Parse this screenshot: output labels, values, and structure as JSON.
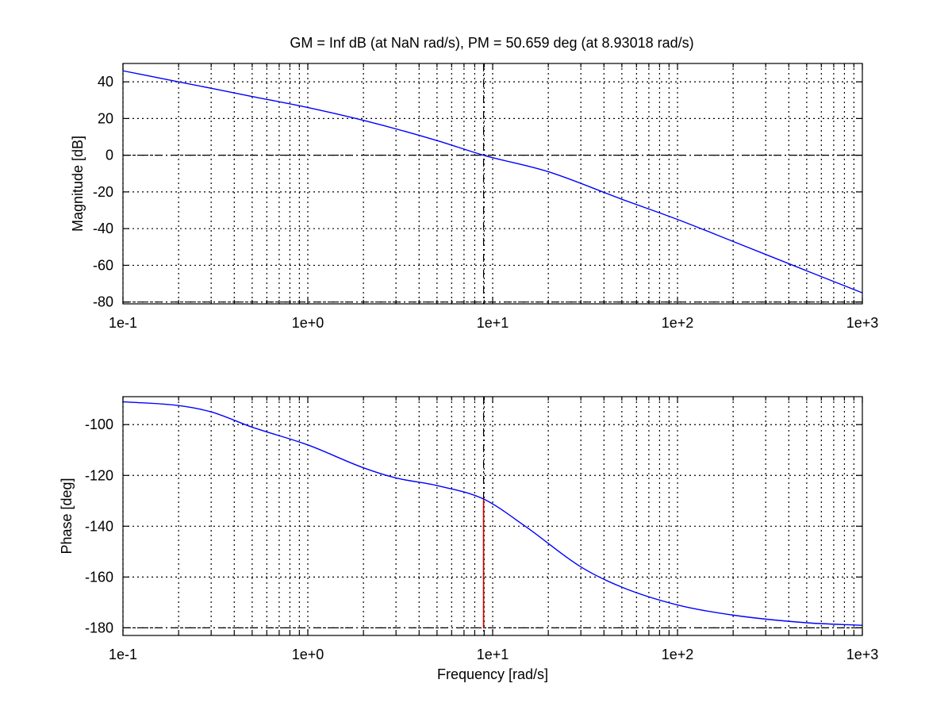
{
  "title": "GM = Inf dB (at NaN rad/s),   PM = 50.659 deg (at 8.93018 rad/s)",
  "colors": {
    "curve": "#0000ff",
    "margin_marker": "#cc0000",
    "grid": "#000000",
    "axes": "#000000",
    "background": "#ffffff"
  },
  "chart_data": [
    {
      "type": "line",
      "panel": "magnitude",
      "xscale": "log",
      "xlabel": "",
      "ylabel": "Magnitude [dB]",
      "xlim": [
        0.1,
        1000
      ],
      "ylim": [
        -81,
        50
      ],
      "x_ticks": [
        0.1,
        1,
        10,
        100,
        1000
      ],
      "x_tick_labels": [
        "1e-1",
        "1e+0",
        "1e+1",
        "1e+2",
        "1e+3"
      ],
      "y_ticks": [
        -80,
        -60,
        -40,
        -20,
        0,
        20,
        40
      ],
      "y_tick_labels": [
        "-80",
        "-60",
        "-40",
        "-20",
        "0",
        "20",
        "40"
      ],
      "grid": true,
      "series": [
        {
          "x": [
            0.1,
            0.2,
            0.5,
            1,
            2,
            5,
            8.93,
            20,
            50,
            100,
            200,
            500,
            1000
          ],
          "y": [
            46,
            40,
            32,
            26,
            19,
            8,
            0,
            -9,
            -24,
            -35,
            -47,
            -63,
            -75
          ]
        }
      ],
      "reference_lines": [
        {
          "axis": "y",
          "value": 0
        },
        {
          "axis": "y",
          "value": -80
        },
        {
          "axis": "x",
          "value": 8.93018
        }
      ]
    },
    {
      "type": "line",
      "panel": "phase",
      "xscale": "log",
      "xlabel": "Frequency [rad/s]",
      "ylabel": "Phase [deg]",
      "xlim": [
        0.1,
        1000
      ],
      "ylim": [
        -183,
        -89
      ],
      "x_ticks": [
        0.1,
        1,
        10,
        100,
        1000
      ],
      "x_tick_labels": [
        "1e-1",
        "1e+0",
        "1e+1",
        "1e+2",
        "1e+3"
      ],
      "y_ticks": [
        -180,
        -160,
        -140,
        -120,
        -100
      ],
      "y_tick_labels": [
        "-180",
        "-160",
        "-140",
        "-120",
        "-100"
      ],
      "grid": true,
      "series": [
        {
          "x": [
            0.1,
            0.2,
            0.3,
            0.5,
            1,
            2,
            3,
            5,
            8.93,
            15,
            30,
            50,
            100,
            200,
            500,
            1000
          ],
          "y": [
            -91,
            -92.5,
            -95,
            -101,
            -108,
            -117,
            -121,
            -124,
            -129.3,
            -140,
            -156,
            -164,
            -171,
            -175,
            -178,
            -179
          ]
        }
      ],
      "reference_lines": [
        {
          "axis": "y",
          "value": -180
        },
        {
          "axis": "x",
          "value": 8.93018
        }
      ],
      "margin_marker": {
        "x": 8.93018,
        "y_from": -180,
        "y_to": -129.3
      }
    }
  ]
}
